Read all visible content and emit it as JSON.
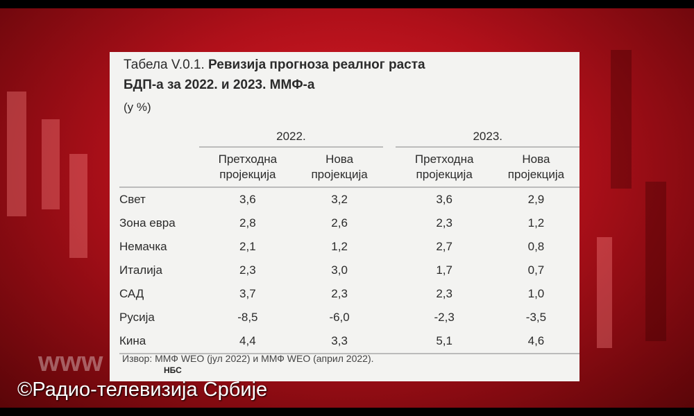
{
  "caption": {
    "label": "Табела V.0.1.",
    "title": [
      "Ревизија прогноза реалног раста",
      "БДП-а за 2022. и 2023. ММФ-а"
    ],
    "unit": "(у %)"
  },
  "table": {
    "years": [
      "2022.",
      "2023."
    ],
    "columns": [
      "Претходна пројекција",
      "Нова пројекција",
      "Претходна пројекција",
      "Нова пројекција"
    ],
    "rows": [
      [
        "Свет",
        "3,6",
        "3,2",
        "3,6",
        "2,9"
      ],
      [
        "Зона евра",
        "2,8",
        "2,6",
        "2,3",
        "1,2"
      ],
      [
        "Немачка",
        "2,1",
        "1,2",
        "2,7",
        "0,8"
      ],
      [
        "Италија",
        "2,3",
        "3,0",
        "1,7",
        "0,7"
      ],
      [
        "САД",
        "3,7",
        "2,3",
        "2,3",
        "1,0"
      ],
      [
        "Русија",
        "-8,5",
        "-6,0",
        "-2,3",
        "-3,5"
      ],
      [
        "Кина",
        "4,4",
        "3,3",
        "5,1",
        "4,6"
      ]
    ]
  },
  "source": "Извор: ММФ WEO (јул 2022) и ММФ WEO (април 2022).",
  "logo": "НБС",
  "watermark": "©Радио-телевизија Србије",
  "web": "www"
}
